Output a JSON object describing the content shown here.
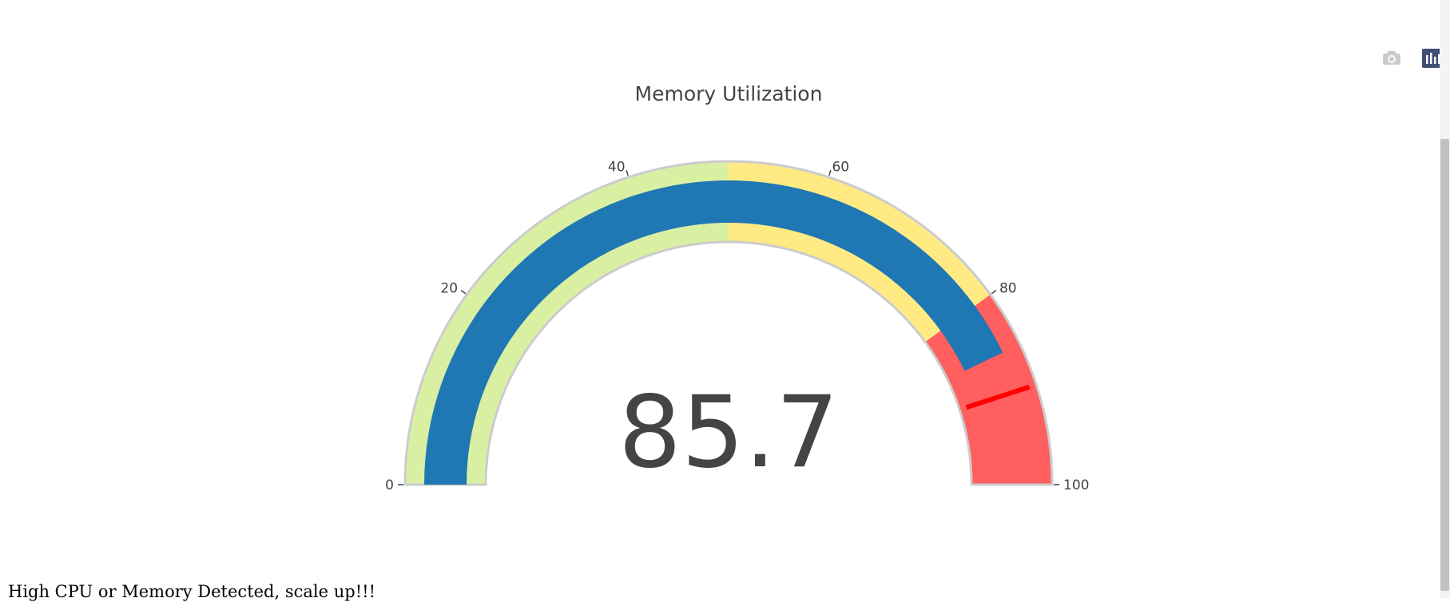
{
  "chart_data": {
    "type": "gauge",
    "title": "Memory Utilization",
    "value": 85.7,
    "value_label": "85.7",
    "range": [
      0,
      100
    ],
    "ticks": [
      0,
      20,
      40,
      60,
      80,
      100
    ],
    "tick_labels": [
      "0",
      "20",
      "40",
      "60",
      "80",
      "100"
    ],
    "bar_color": "#1f77b4",
    "steps": [
      {
        "range": [
          0,
          50
        ],
        "color": "#d9f0a3"
      },
      {
        "range": [
          50,
          80
        ],
        "color": "#ffea84"
      },
      {
        "range": [
          80,
          100
        ],
        "color": "#ff5f5f"
      }
    ],
    "threshold": {
      "value": 90,
      "color": "#ff0000"
    }
  },
  "toolbar": {
    "camera_icon": "camera-icon",
    "plotly_logo_icon": "plotly-logo-icon"
  },
  "message": "High CPU or Memory Detected, scale up!!!"
}
